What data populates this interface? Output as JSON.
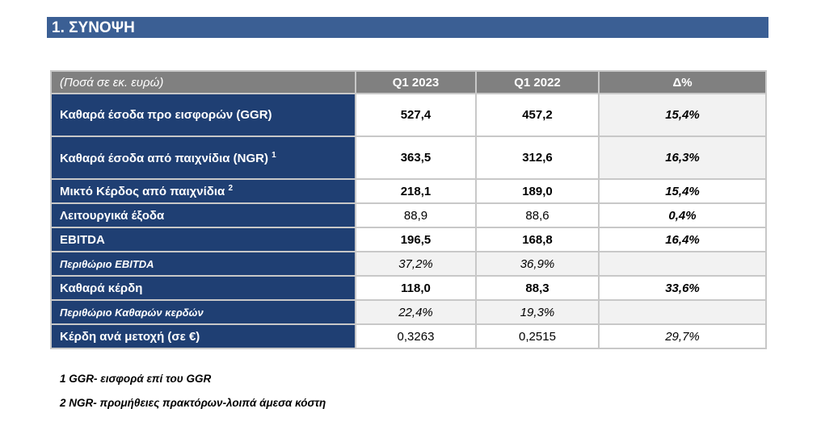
{
  "header": {
    "title": "1.  ΣΥΝΟΨΗ"
  },
  "table": {
    "columns": [
      "(Ποσά σε εκ. ευρώ)",
      "Q1 2023",
      "Q1 2022",
      "Δ%"
    ],
    "rows": [
      {
        "label": "Καθαρά έσοδα προ εισφορών (GGR)",
        "values": [
          "527,4",
          "457,2",
          "15,4%"
        ]
      },
      {
        "label": "Καθαρά έσοδα από παιχνίδια (NGR)",
        "note": "1",
        "values": [
          "363,5",
          "312,6",
          "16,3%"
        ]
      },
      {
        "label": "Μικτό Κέρδος από παιχνίδια",
        "note": "2",
        "values": [
          "218,1",
          "189,0",
          "15,4%"
        ]
      },
      {
        "label": "Λειτουργικά έξοδα",
        "values": [
          "88,9",
          "88,6",
          "0,4%"
        ]
      },
      {
        "label": "EBITDA",
        "values": [
          "196,5",
          "168,8",
          "16,4%"
        ]
      },
      {
        "label": "Περιθώριο EBITDA",
        "values": [
          "37,2%",
          "36,9%"
        ]
      },
      {
        "label": "Καθαρά κέρδη",
        "values": [
          "118,0",
          "88,3",
          "33,6%"
        ]
      },
      {
        "label": "Περιθώριο Καθαρών κερδών",
        "values": [
          "22,4%",
          "19,3%"
        ]
      },
      {
        "label": "Κέρδη ανά μετοχή (σε €)",
        "values": [
          "0,3263",
          "0,2515",
          "29,7%"
        ]
      }
    ]
  },
  "footnotes": [
    "1 GGR- εισφορά επί του GGR",
    "2 NGR- προμήθειες πρακτόρων-λοιπά άμεσα κόστη"
  ]
}
